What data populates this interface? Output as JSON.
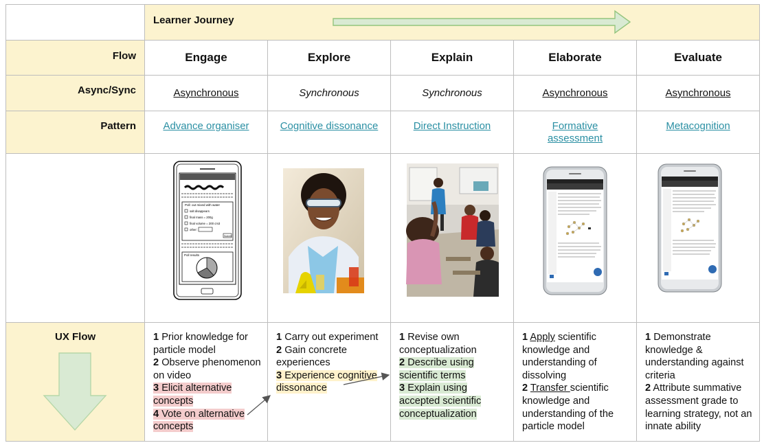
{
  "header": {
    "title": "Learner Journey"
  },
  "rows": {
    "flow": "Flow",
    "async": "Async/Sync",
    "pattern": "Pattern",
    "ux": "UX Flow"
  },
  "phases": [
    {
      "name": "Engage",
      "mode": "Asynchronous",
      "pattern": "Advance organiser"
    },
    {
      "name": "Explore",
      "mode": "Synchronous",
      "pattern": "Cognitive dissonance"
    },
    {
      "name": "Explain",
      "mode": "Synchronous",
      "pattern": "Direct Instruction"
    },
    {
      "name": "Elaborate",
      "mode": "Asynchronous",
      "pattern": "Formative assessment"
    },
    {
      "name": "Evaluate",
      "mode": "Asynchronous",
      "pattern": "Metacognition"
    }
  ],
  "ux": {
    "engage": {
      "s1n": "1",
      "s1": "Prior knowledge for particle model",
      "s2n": "2",
      "s2": "Observe phenomenon on video",
      "s3n": "3",
      "s3": "Elicit alternative concepts",
      "s4n": "4",
      "s4": "Vote on alternative concepts"
    },
    "explore": {
      "s1n": "1",
      "s1": "Carry out experiment",
      "s2n": "2",
      "s2": "Gain concrete experiences",
      "s3n": "3",
      "s3": "Experience cognitive dissonance"
    },
    "explain": {
      "s1n": "1",
      "s1": "Revise own conceptualization",
      "s2n": "2",
      "s2": "Describe using scientific terms",
      "s3n": "3",
      "s3": "Explain using accepted scientific conceptualization"
    },
    "elaborate": {
      "s1n": "1",
      "s1a": "Apply",
      "s1b": " scientific knowledge and understanding of dissolving",
      "s2n": "2",
      "s2a": "Transfer ",
      "s2b": "scientific knowledge and understanding of the particle model"
    },
    "evaluate": {
      "s1n": "1",
      "s1": "Demonstrate knowledge  & understanding against criteria",
      "s2n": "2",
      "s2": "Attribute summative assessment grade to learning strategy, not an innate ability"
    }
  },
  "wireframe": {
    "poll_title": "Poll: out mixed with water",
    "options": [
      "salt disappears",
      "final mass = 200g",
      "final volume = 200 cm3",
      "other:"
    ],
    "submit": "Submit",
    "results_title": "Poll results"
  },
  "colors": {
    "header_bg": "#fcf3cf",
    "arrow_fill": "#d9ead3",
    "arrow_stroke": "#93c47d",
    "link": "#2a8fa3",
    "highlight_red": "#f4cccc",
    "highlight_yellow": "#fff2cc",
    "highlight_green": "#d9ead3"
  },
  "icons": [
    "right-arrow-icon",
    "down-arrow-icon",
    "connector-arrow-icon"
  ]
}
